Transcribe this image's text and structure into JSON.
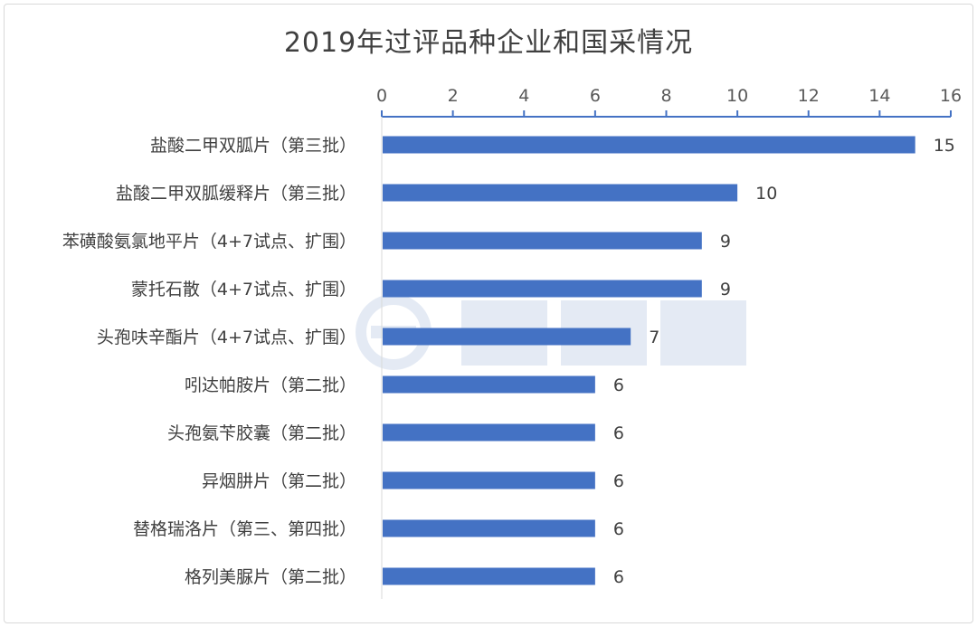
{
  "chart_data": {
    "type": "bar",
    "orientation": "horizontal",
    "title": "2019年过评品种企业和国采情况",
    "categories": [
      "盐酸二甲双胍片（第三批）",
      "盐酸二甲双胍缓释片（第三批）",
      "苯磺酸氨氯地平片（4+7试点、扩围）",
      "蒙托石散（4+7试点、扩围）",
      "头孢呋辛酯片（4+7试点、扩围）",
      "吲达帕胺片（第二批）",
      "头孢氨苄胶囊（第二批）",
      "异烟肼片（第二批）",
      "替格瑞洛片（第三、第四批）",
      "格列美脲片（第二批）"
    ],
    "values": [
      15,
      10,
      9,
      9,
      7,
      6,
      6,
      6,
      6,
      6
    ],
    "xlim": [
      0,
      16
    ],
    "xticks": [
      0,
      2,
      4,
      6,
      8,
      10,
      12,
      14,
      16
    ],
    "axis_position": "top",
    "grid": false,
    "legend": "none",
    "bar_color": "#4472c4",
    "axis_color": "#4472c4",
    "label_color": "#404040"
  }
}
